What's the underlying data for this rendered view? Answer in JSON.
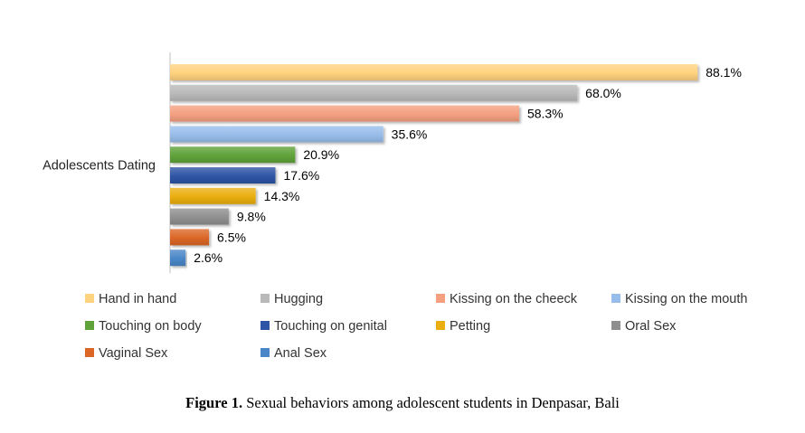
{
  "chart_data": {
    "type": "bar",
    "orientation": "horizontal",
    "categories": [
      "Adolescents Dating"
    ],
    "series": [
      {
        "name": "Hand in hand",
        "values": [
          88.1
        ],
        "label": "88.1%",
        "color": "#FFD27F"
      },
      {
        "name": "Hugging",
        "values": [
          68.0
        ],
        "label": "68.0%",
        "color": "#B9B9B9"
      },
      {
        "name": "Kissing on the cheeck",
        "values": [
          58.3
        ],
        "label": "58.3%",
        "color": "#F4A080"
      },
      {
        "name": "Kissing on the mouth",
        "values": [
          35.6
        ],
        "label": "35.6%",
        "color": "#98BDEA"
      },
      {
        "name": "Touching on body",
        "values": [
          20.9
        ],
        "label": "20.9%",
        "color": "#5FA23A"
      },
      {
        "name": "Touching on genital",
        "values": [
          17.6
        ],
        "label": "17.6%",
        "color": "#2E55A5"
      },
      {
        "name": "Petting",
        "values": [
          14.3
        ],
        "label": "14.3%",
        "color": "#EAAE10"
      },
      {
        "name": "Oral Sex",
        "values": [
          9.8
        ],
        "label": "9.8%",
        "color": "#8F8F8F"
      },
      {
        "name": "Vaginal Sex",
        "values": [
          6.5
        ],
        "label": "6.5%",
        "color": "#DB6626"
      },
      {
        "name": "Anal Sex",
        "values": [
          2.6
        ],
        "label": "2.6%",
        "color": "#4A87C8"
      }
    ],
    "xlim": [
      0,
      100
    ],
    "grid": false,
    "legend_position": "bottom"
  },
  "caption": {
    "label": "Figure 1.",
    "text": " Sexual behaviors among adolescent students in Denpasar, Bali"
  }
}
